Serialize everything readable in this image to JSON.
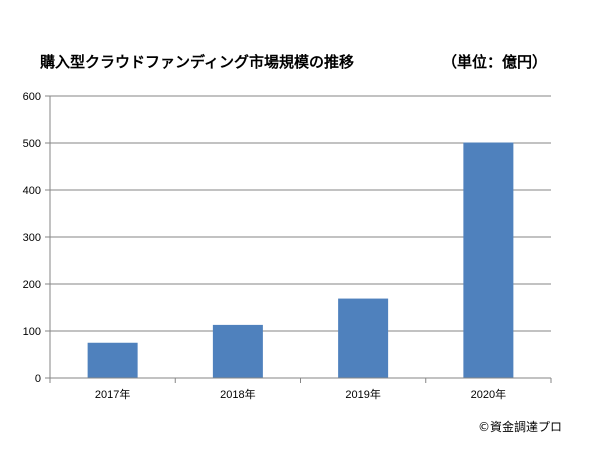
{
  "chart_data": {
    "type": "bar",
    "title": "購入型クラウドファンディング市場規模の推移",
    "unit_label": "（単位：億円）",
    "categories": [
      "2017年",
      "2018年",
      "2019年",
      "2020年"
    ],
    "series": [
      {
        "values": [
          75,
          113,
          169,
          501
        ]
      }
    ],
    "ylim": [
      0,
      600
    ],
    "yticks": [
      0,
      100,
      200,
      300,
      400,
      500,
      600
    ],
    "grid": true,
    "bar_color": "#4f81bd",
    "grid_color": "#868686"
  },
  "footer": {
    "copyright": "©資金調達プロ"
  }
}
